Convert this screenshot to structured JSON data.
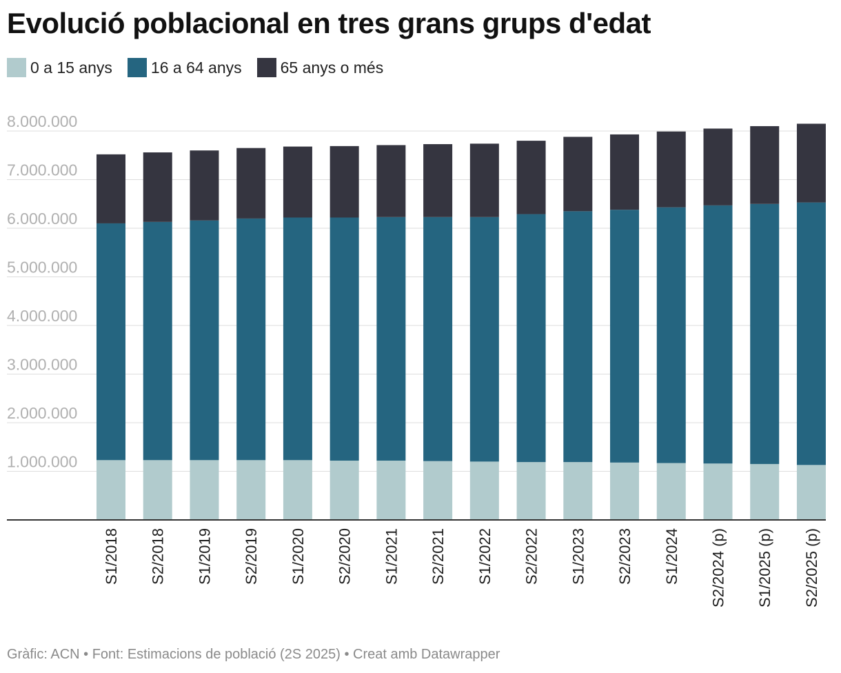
{
  "title": "Evolució poblacional en tres grans grups d'edat",
  "footer": "Gràfic: ACN • Font: Estimacions de població (2S 2025) • Creat amb Datawrapper",
  "colors": {
    "age_0_15": "#b1cbcd",
    "age_16_64": "#256580",
    "age_65_plus": "#353540",
    "grid": "#dddddd",
    "axis_text": "#b0b0b0",
    "baseline": "#333333"
  },
  "chart_data": {
    "type": "bar",
    "stacked": true,
    "title": "Evolució poblacional en tres grans grups d'edat",
    "xlabel": "",
    "ylabel": "",
    "ylim": [
      0,
      8000000
    ],
    "yticks": [
      1000000,
      2000000,
      3000000,
      4000000,
      5000000,
      6000000,
      7000000,
      8000000
    ],
    "ytick_labels": [
      "1.000.000",
      "2.000.000",
      "3.000.000",
      "4.000.000",
      "5.000.000",
      "6.000.000",
      "7.000.000",
      "8.000.000"
    ],
    "grid": true,
    "legend_position": "top-left",
    "categories": [
      "S1/2018",
      "S2/2018",
      "S1/2019",
      "S2/2019",
      "S1/2020",
      "S2/2020",
      "S1/2021",
      "S2/2021",
      "S1/2022",
      "S2/2022",
      "S1/2023",
      "S2/2023",
      "S1/2024",
      "S2/2024 (p)",
      "S1/2025 (p)",
      "S2/2025 (p)"
    ],
    "series": [
      {
        "name": "0 a 15 anys",
        "color_key": "age_0_15",
        "values": [
          1230000,
          1230000,
          1230000,
          1230000,
          1230000,
          1220000,
          1220000,
          1210000,
          1200000,
          1190000,
          1190000,
          1180000,
          1170000,
          1160000,
          1150000,
          1130000
        ]
      },
      {
        "name": "16 a 64 anys",
        "color_key": "age_16_64",
        "values": [
          4870000,
          4900000,
          4930000,
          4970000,
          4990000,
          5000000,
          5010000,
          5020000,
          5030000,
          5100000,
          5160000,
          5200000,
          5260000,
          5310000,
          5350000,
          5400000
        ]
      },
      {
        "name": "65 anys o més",
        "color_key": "age_65_plus",
        "values": [
          1420000,
          1430000,
          1440000,
          1450000,
          1460000,
          1470000,
          1480000,
          1500000,
          1510000,
          1510000,
          1530000,
          1550000,
          1560000,
          1580000,
          1600000,
          1620000
        ]
      }
    ]
  }
}
